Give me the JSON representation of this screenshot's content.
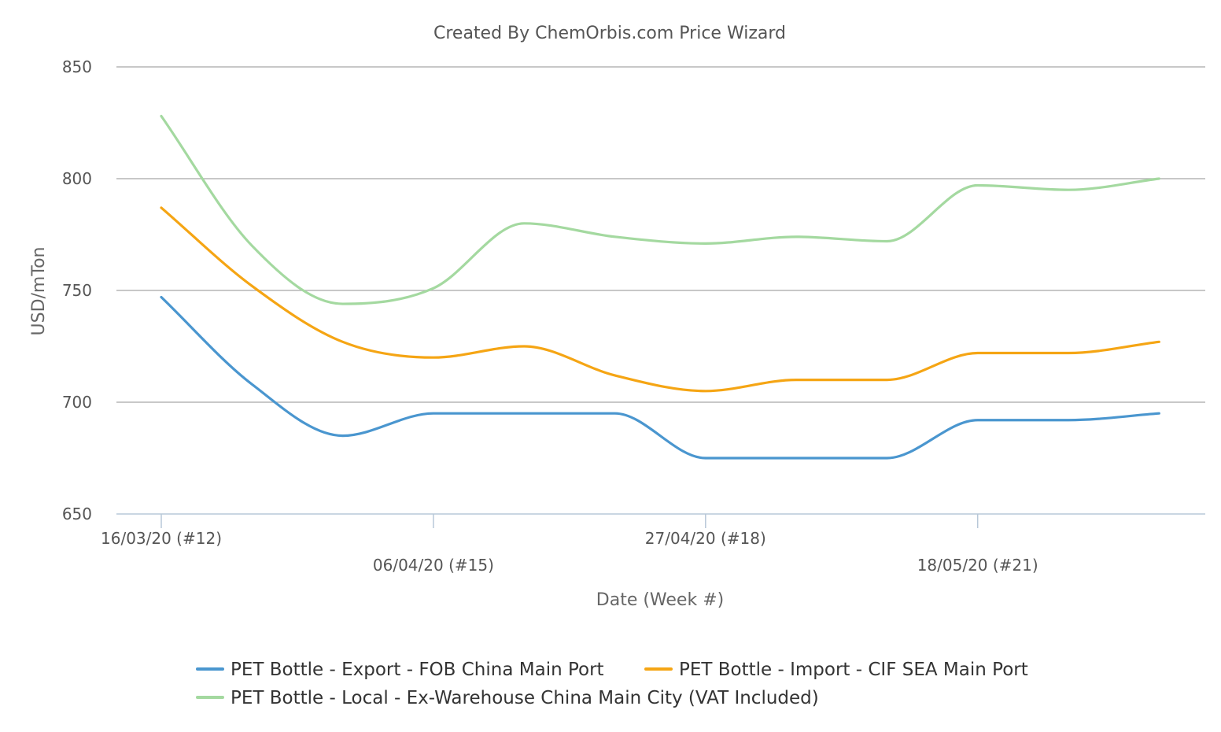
{
  "chart_data": {
    "type": "line",
    "title": "Created By ChemOrbis.com Price Wizard",
    "xlabel": "Date (Week #)",
    "ylabel": "USD/mTon",
    "ylim": [
      650,
      850
    ],
    "yticks": [
      "850",
      "800",
      "750",
      "700",
      "650"
    ],
    "ytick_values": [
      850,
      800,
      750,
      700,
      650
    ],
    "x_tick_labels": [
      {
        "label": "16/03/20 (#12)",
        "index": 0
      },
      {
        "label": "06/04/20 (#15)",
        "index": 3
      },
      {
        "label": "27/04/20 (#18)",
        "index": 6
      },
      {
        "label": "18/05/20 (#21)",
        "index": 9
      }
    ],
    "x_count": 12,
    "grid": true,
    "legend_position": "bottom-center",
    "series": [
      {
        "name": "PET Bottle - Export - FOB China Main Port",
        "color": "#4a96cf",
        "values": [
          747,
          708,
          685,
          695,
          695,
          695,
          675,
          675,
          675,
          692,
          692,
          695
        ]
      },
      {
        "name": "PET Bottle - Import - CIF SEA Main Port",
        "color": "#f5a514",
        "values": [
          787,
          752,
          727,
          720,
          725,
          712,
          705,
          710,
          710,
          722,
          722,
          727
        ]
      },
      {
        "name": "PET Bottle - Local - Ex-Warehouse China Main City (VAT Included)",
        "color": "#a4d9a0",
        "values": [
          828,
          770,
          744,
          751,
          780,
          774,
          771,
          774,
          772,
          797,
          795,
          800
        ]
      }
    ]
  }
}
